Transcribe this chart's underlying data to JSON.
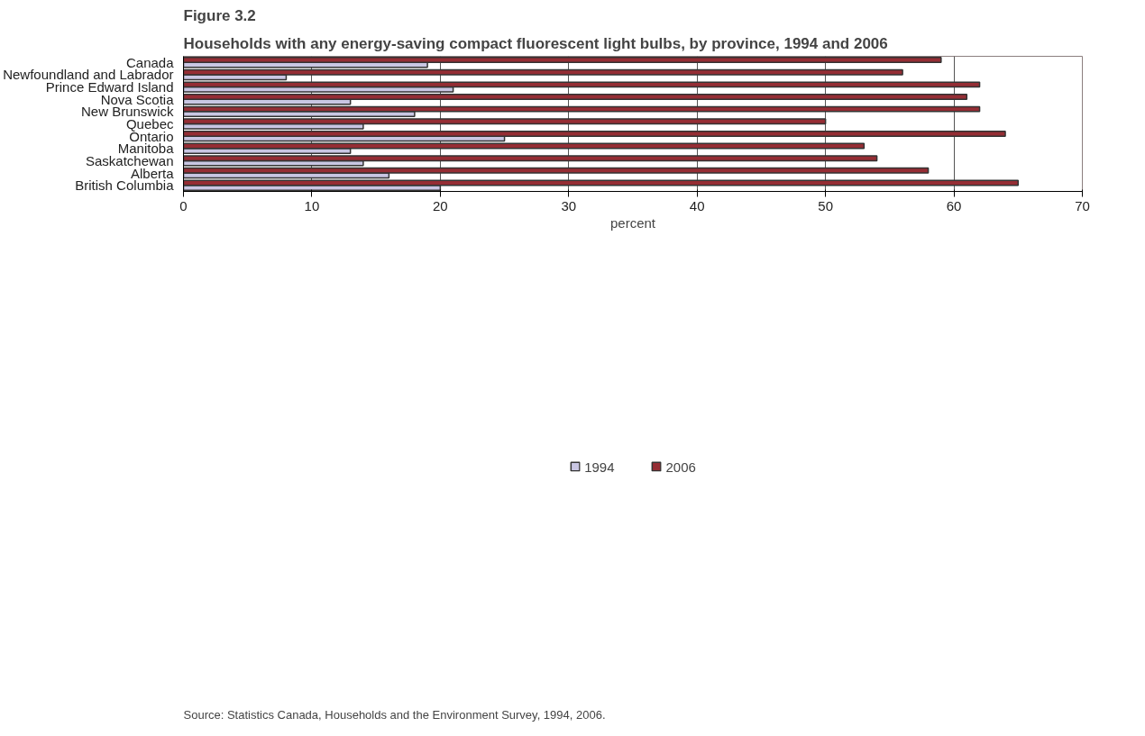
{
  "chart_data": {
    "type": "bar",
    "orientation": "horizontal",
    "title": "Figure 3.2",
    "subtitle": "Households with any energy-saving compact fluorescent light bulbs, by province, 1994 and 2006",
    "xlabel": "percent",
    "categories": [
      "Canada",
      "Newfoundland and Labrador",
      "Prince Edward Island",
      "Nova Scotia",
      "New Brunswick",
      "Quebec",
      "Ontario",
      "Manitoba",
      "Saskatchewan",
      "Alberta",
      "British Columbia"
    ],
    "series": [
      {
        "name": "1994",
        "color": "#c9c6e3",
        "values": [
          19,
          8,
          21,
          13,
          18,
          14,
          25,
          13,
          14,
          16,
          20
        ]
      },
      {
        "name": "2006",
        "color": "#952d34",
        "values": [
          59,
          56,
          62,
          61,
          62,
          50,
          64,
          53,
          54,
          58,
          65
        ]
      }
    ],
    "xlim": [
      0,
      70
    ],
    "xticks": [
      0,
      10,
      20,
      30,
      40,
      50,
      60,
      70
    ],
    "grid": "x",
    "legend": "bottom",
    "annotations": [
      "Source: Statistics Canada, Households and the Environment Survey, 1994, 2006."
    ]
  }
}
